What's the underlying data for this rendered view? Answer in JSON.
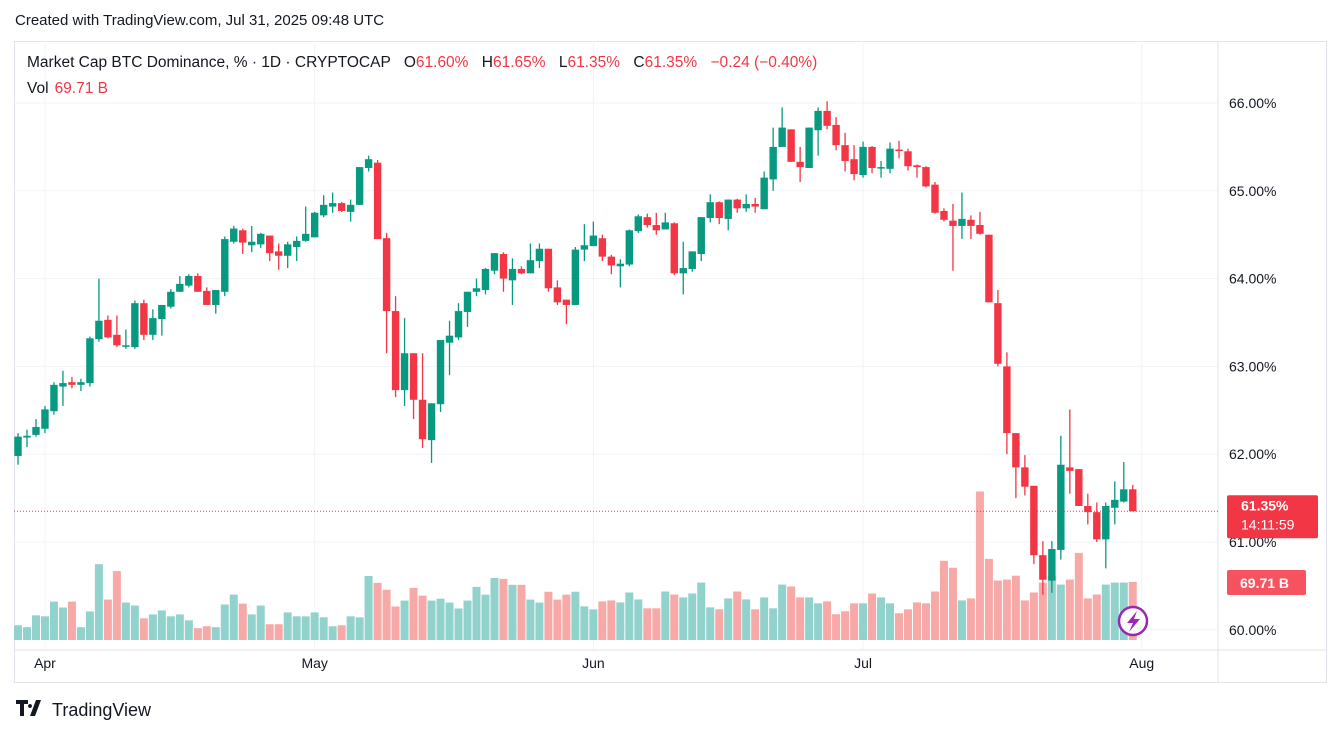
{
  "header": {
    "created": "Created with TradingView.com, Jul 31, 2025 09:48 UTC"
  },
  "legend": {
    "symbol": "Market Cap BTC Dominance, % · 1D · CRYPTOCAP",
    "o_label": "O",
    "o": "61.60%",
    "h_label": "H",
    "h": "61.65%",
    "l_label": "L",
    "l": "61.35%",
    "c_label": "C",
    "c": "61.35%",
    "change": "−0.24 (−0.40%)",
    "vol_label": "Vol",
    "vol": "69.71 B"
  },
  "price_axis": {
    "labels": [
      "66.00%",
      "65.00%",
      "64.00%",
      "63.00%",
      "62.00%",
      "61.00%",
      "60.00%"
    ]
  },
  "last_price": {
    "value": "61.35%",
    "countdown": "14:11:59",
    "volume": "69.71 B"
  },
  "time_axis": {
    "ticks": [
      {
        "date": "2025-04-01",
        "label": "Apr"
      },
      {
        "date": "2025-05-01",
        "label": "May"
      },
      {
        "date": "2025-06-01",
        "label": "Jun"
      },
      {
        "date": "2025-07-01",
        "label": "Jul"
      },
      {
        "date": "2025-08-01",
        "label": "Aug"
      }
    ]
  },
  "footer": {
    "brand": "TradingView",
    "logo_text": "TV"
  },
  "colors": {
    "up": "#089981",
    "down": "#f23645",
    "vol_up": "#92d2cc",
    "vol_down": "#f7a9a7",
    "grid": "#f0f3fa",
    "badge_red": "#f23645",
    "lightning": "#9c27b0"
  },
  "icons": {
    "lightning": "lightning-icon"
  },
  "chart_data": {
    "type": "candlestick",
    "title": "Market Cap BTC Dominance, %",
    "interval": "1D",
    "exchange": "CRYPTOCAP",
    "ylim": [
      60,
      66
    ],
    "y_unit": "%",
    "grid": true,
    "volume_unit": "B",
    "candles_format": [
      "date",
      "open",
      "high",
      "low",
      "close"
    ],
    "candles": [
      [
        "2025-03-29",
        61.98,
        62.24,
        61.88,
        62.2
      ],
      [
        "2025-03-30",
        62.19,
        62.28,
        62.08,
        62.21
      ],
      [
        "2025-03-31",
        62.22,
        62.4,
        62.2,
        62.31
      ],
      [
        "2025-04-01",
        62.29,
        62.55,
        62.24,
        62.51
      ],
      [
        "2025-04-02",
        62.49,
        62.82,
        62.45,
        62.79
      ],
      [
        "2025-04-03",
        62.77,
        62.95,
        62.55,
        62.81
      ],
      [
        "2025-04-04",
        62.82,
        62.88,
        62.75,
        62.79
      ],
      [
        "2025-04-05",
        62.79,
        62.86,
        62.72,
        62.82
      ],
      [
        "2025-04-06",
        62.81,
        63.34,
        62.77,
        63.32
      ],
      [
        "2025-04-07",
        63.31,
        64.0,
        63.28,
        63.52
      ],
      [
        "2025-04-08",
        63.53,
        63.58,
        63.32,
        63.33
      ],
      [
        "2025-04-09",
        63.36,
        63.58,
        63.22,
        63.24
      ],
      [
        "2025-04-10",
        63.24,
        63.42,
        63.2,
        63.24
      ],
      [
        "2025-04-11",
        63.22,
        63.75,
        63.2,
        63.72
      ],
      [
        "2025-04-12",
        63.72,
        63.76,
        63.3,
        63.36
      ],
      [
        "2025-04-13",
        63.36,
        63.65,
        63.3,
        63.55
      ],
      [
        "2025-04-14",
        63.54,
        63.7,
        63.35,
        63.7
      ],
      [
        "2025-04-15",
        63.68,
        63.88,
        63.66,
        63.85
      ],
      [
        "2025-04-16",
        63.85,
        64.03,
        63.85,
        63.94
      ],
      [
        "2025-04-17",
        63.92,
        64.05,
        63.9,
        64.03
      ],
      [
        "2025-04-18",
        64.03,
        64.06,
        63.85,
        63.85
      ],
      [
        "2025-04-19",
        63.86,
        63.9,
        63.7,
        63.7
      ],
      [
        "2025-04-20",
        63.7,
        63.87,
        63.6,
        63.87
      ],
      [
        "2025-04-21",
        63.85,
        64.48,
        63.8,
        64.45
      ],
      [
        "2025-04-22",
        64.42,
        64.6,
        64.4,
        64.57
      ],
      [
        "2025-04-23",
        64.55,
        64.57,
        64.28,
        64.41
      ],
      [
        "2025-04-24",
        64.38,
        64.6,
        64.3,
        64.42
      ],
      [
        "2025-04-25",
        64.39,
        64.52,
        64.35,
        64.51
      ],
      [
        "2025-04-26",
        64.49,
        64.49,
        64.2,
        64.29
      ],
      [
        "2025-04-27",
        64.31,
        64.4,
        64.1,
        64.26
      ],
      [
        "2025-04-28",
        64.26,
        64.42,
        64.12,
        64.39
      ],
      [
        "2025-04-29",
        64.36,
        64.48,
        64.2,
        64.43
      ],
      [
        "2025-04-30",
        64.43,
        64.82,
        64.42,
        64.51
      ],
      [
        "2025-05-01",
        64.47,
        64.76,
        64.47,
        64.75
      ],
      [
        "2025-05-02",
        64.72,
        64.95,
        64.7,
        64.84
      ],
      [
        "2025-05-03",
        64.82,
        64.98,
        64.75,
        64.86
      ],
      [
        "2025-05-04",
        64.86,
        64.87,
        64.76,
        64.77
      ],
      [
        "2025-05-05",
        64.76,
        64.9,
        64.65,
        64.84
      ],
      [
        "2025-05-06",
        64.84,
        65.27,
        64.84,
        65.27
      ],
      [
        "2025-05-07",
        65.26,
        65.4,
        65.22,
        65.36
      ],
      [
        "2025-05-08",
        65.32,
        65.35,
        64.45,
        64.45
      ],
      [
        "2025-05-09",
        64.46,
        64.52,
        63.15,
        63.63
      ],
      [
        "2025-05-10",
        63.63,
        63.8,
        62.65,
        62.73
      ],
      [
        "2025-05-11",
        62.73,
        63.55,
        62.55,
        63.15
      ],
      [
        "2025-05-12",
        63.15,
        63.15,
        62.4,
        62.62
      ],
      [
        "2025-05-13",
        62.62,
        63.15,
        62.07,
        62.17
      ],
      [
        "2025-05-14",
        62.16,
        62.58,
        61.9,
        62.58
      ],
      [
        "2025-05-15",
        62.57,
        63.3,
        62.48,
        63.3
      ],
      [
        "2025-05-16",
        63.27,
        63.52,
        62.9,
        63.35
      ],
      [
        "2025-05-17",
        63.33,
        63.72,
        63.3,
        63.63
      ],
      [
        "2025-05-18",
        63.62,
        63.85,
        63.45,
        63.85
      ],
      [
        "2025-05-19",
        63.85,
        64.0,
        63.8,
        63.89
      ],
      [
        "2025-05-20",
        63.87,
        64.12,
        63.82,
        64.11
      ],
      [
        "2025-05-21",
        64.09,
        64.29,
        64.05,
        64.29
      ],
      [
        "2025-05-22",
        64.28,
        64.3,
        63.85,
        64.0
      ],
      [
        "2025-05-23",
        63.98,
        64.23,
        63.7,
        64.11
      ],
      [
        "2025-05-24",
        64.11,
        64.14,
        64.05,
        64.06
      ],
      [
        "2025-05-25",
        64.06,
        64.4,
        64.06,
        64.21
      ],
      [
        "2025-05-26",
        64.2,
        64.4,
        64.12,
        64.34
      ],
      [
        "2025-05-27",
        64.34,
        64.34,
        63.85,
        63.89
      ],
      [
        "2025-05-28",
        63.9,
        63.98,
        63.7,
        63.73
      ],
      [
        "2025-05-29",
        63.76,
        63.76,
        63.48,
        63.7
      ],
      [
        "2025-05-30",
        63.7,
        64.36,
        63.7,
        64.33
      ],
      [
        "2025-05-31",
        64.33,
        64.62,
        64.2,
        64.38
      ],
      [
        "2025-06-01",
        64.37,
        64.65,
        64.37,
        64.49
      ],
      [
        "2025-06-02",
        64.46,
        64.5,
        64.2,
        64.25
      ],
      [
        "2025-06-03",
        64.25,
        64.27,
        64.05,
        64.15
      ],
      [
        "2025-06-04",
        64.14,
        64.22,
        63.9,
        64.17
      ],
      [
        "2025-06-05",
        64.16,
        64.56,
        64.14,
        64.55
      ],
      [
        "2025-06-06",
        64.54,
        64.73,
        64.52,
        64.71
      ],
      [
        "2025-06-07",
        64.7,
        64.74,
        64.58,
        64.61
      ],
      [
        "2025-06-08",
        64.61,
        64.75,
        64.5,
        64.55
      ],
      [
        "2025-06-09",
        64.56,
        64.75,
        64.56,
        64.64
      ],
      [
        "2025-06-10",
        64.63,
        64.64,
        64.04,
        64.06
      ],
      [
        "2025-06-11",
        64.06,
        64.42,
        63.82,
        64.12
      ],
      [
        "2025-06-12",
        64.11,
        64.31,
        64.08,
        64.31
      ],
      [
        "2025-06-13",
        64.28,
        64.7,
        64.2,
        64.7
      ],
      [
        "2025-06-14",
        64.69,
        64.96,
        64.64,
        64.87
      ],
      [
        "2025-06-15",
        64.87,
        64.88,
        64.62,
        64.69
      ],
      [
        "2025-06-16",
        64.68,
        64.9,
        64.55,
        64.9
      ],
      [
        "2025-06-17",
        64.9,
        64.91,
        64.75,
        64.8
      ],
      [
        "2025-06-18",
        64.8,
        64.96,
        64.76,
        64.85
      ],
      [
        "2025-06-19",
        64.85,
        64.92,
        64.75,
        64.82
      ],
      [
        "2025-06-20",
        64.79,
        65.22,
        64.79,
        65.15
      ],
      [
        "2025-06-21",
        65.13,
        65.72,
        65.0,
        65.5
      ],
      [
        "2025-06-22",
        65.5,
        65.95,
        65.5,
        65.72
      ],
      [
        "2025-06-23",
        65.7,
        65.7,
        65.33,
        65.33
      ],
      [
        "2025-06-24",
        65.33,
        65.5,
        65.1,
        65.27
      ],
      [
        "2025-06-25",
        65.26,
        65.72,
        65.26,
        65.72
      ],
      [
        "2025-06-26",
        65.69,
        65.95,
        65.4,
        65.91
      ],
      [
        "2025-06-27",
        65.91,
        66.02,
        65.7,
        65.74
      ],
      [
        "2025-06-28",
        65.75,
        65.84,
        65.46,
        65.52
      ],
      [
        "2025-06-29",
        65.52,
        65.66,
        65.22,
        65.34
      ],
      [
        "2025-06-30",
        65.36,
        65.52,
        65.12,
        65.19
      ],
      [
        "2025-07-01",
        65.18,
        65.56,
        65.15,
        65.5
      ],
      [
        "2025-07-02",
        65.5,
        65.51,
        65.2,
        65.26
      ],
      [
        "2025-07-03",
        65.26,
        65.34,
        65.15,
        65.27
      ],
      [
        "2025-07-04",
        65.25,
        65.55,
        65.2,
        65.48
      ],
      [
        "2025-07-05",
        65.47,
        65.57,
        65.37,
        65.46
      ],
      [
        "2025-07-06",
        65.45,
        65.48,
        65.23,
        65.28
      ],
      [
        "2025-07-07",
        65.29,
        65.3,
        65.15,
        65.27
      ],
      [
        "2025-07-08",
        65.27,
        65.28,
        65.04,
        65.05
      ],
      [
        "2025-07-09",
        65.07,
        65.1,
        64.74,
        64.75
      ],
      [
        "2025-07-10",
        64.77,
        64.8,
        64.65,
        64.67
      ],
      [
        "2025-07-11",
        64.66,
        64.85,
        64.09,
        64.6
      ],
      [
        "2025-07-12",
        64.6,
        64.98,
        64.45,
        64.68
      ],
      [
        "2025-07-13",
        64.67,
        64.72,
        64.45,
        64.6
      ],
      [
        "2025-07-14",
        64.61,
        64.76,
        64.5,
        64.51
      ],
      [
        "2025-07-15",
        64.5,
        64.5,
        63.73,
        63.73
      ],
      [
        "2025-07-16",
        63.72,
        63.87,
        63.0,
        63.03
      ],
      [
        "2025-07-17",
        63.0,
        63.16,
        62.0,
        62.24
      ],
      [
        "2025-07-18",
        62.24,
        62.24,
        61.5,
        61.85
      ],
      [
        "2025-07-19",
        61.85,
        61.99,
        61.53,
        61.63
      ],
      [
        "2025-07-20",
        61.64,
        61.64,
        60.75,
        60.85
      ],
      [
        "2025-07-21",
        60.85,
        61.01,
        60.4,
        60.57
      ],
      [
        "2025-07-22",
        60.56,
        61.01,
        60.42,
        60.92
      ],
      [
        "2025-07-23",
        60.91,
        62.21,
        60.8,
        61.88
      ],
      [
        "2025-07-24",
        61.85,
        62.51,
        61.55,
        61.81
      ],
      [
        "2025-07-25",
        61.83,
        61.83,
        61.41,
        61.41
      ],
      [
        "2025-07-26",
        61.41,
        61.55,
        61.2,
        61.34
      ],
      [
        "2025-07-27",
        61.34,
        61.45,
        61.0,
        61.03
      ],
      [
        "2025-07-28",
        61.03,
        61.45,
        60.7,
        61.41
      ],
      [
        "2025-07-29",
        61.39,
        61.69,
        61.2,
        61.48
      ],
      [
        "2025-07-30",
        61.46,
        61.91,
        61.45,
        61.6
      ],
      [
        "2025-07-31",
        61.6,
        61.65,
        61.35,
        61.35
      ]
    ],
    "volume": [
      17.7,
      15.4,
      29.6,
      28.4,
      46.1,
      39.0,
      46.1,
      15.4,
      34.3,
      91.0,
      48.5,
      82.7,
      44.9,
      41.4,
      26.0,
      30.7,
      35.5,
      28.4,
      30.7,
      23.6,
      14.2,
      16.5,
      15.4,
      42.6,
      54.4,
      43.7,
      30.7,
      41.4,
      18.9,
      18.9,
      33.1,
      28.4,
      28.4,
      33.1,
      27.2,
      16.5,
      17.7,
      28.4,
      27.2,
      76.8,
      68.6,
      60.3,
      40.2,
      47.3,
      62.6,
      53.2,
      47.3,
      49.6,
      44.9,
      37.8,
      47.3,
      63.8,
      54.4,
      74.5,
      73.3,
      66.2,
      66.2,
      48.5,
      44.9,
      57.9,
      48.5,
      54.4,
      57.9,
      40.4,
      36.8,
      46.3,
      47.5,
      45.1,
      57.0,
      48.7,
      38.0,
      38.0,
      58.2,
      54.6,
      51.1,
      55.8,
      68.9,
      39.2,
      36.8,
      49.9,
      58.2,
      48.7,
      36.8,
      51.1,
      38.0,
      66.5,
      64.2,
      51.1,
      51.1,
      44.0,
      46.3,
      30.9,
      34.5,
      44.0,
      44.0,
      55.8,
      51.1,
      44.0,
      32.1,
      36.8,
      45.1,
      44.0,
      58.2,
      95.0,
      86.7,
      47.5,
      49.9,
      178.2,
      97.4,
      71.3,
      72.5,
      77.2,
      47.5,
      57.0,
      68.9,
      77.2,
      66.5,
      72.5,
      104.5,
      49.9,
      54.6,
      66.5,
      68.9,
      68.9,
      69.71
    ],
    "last_close": 61.35
  }
}
